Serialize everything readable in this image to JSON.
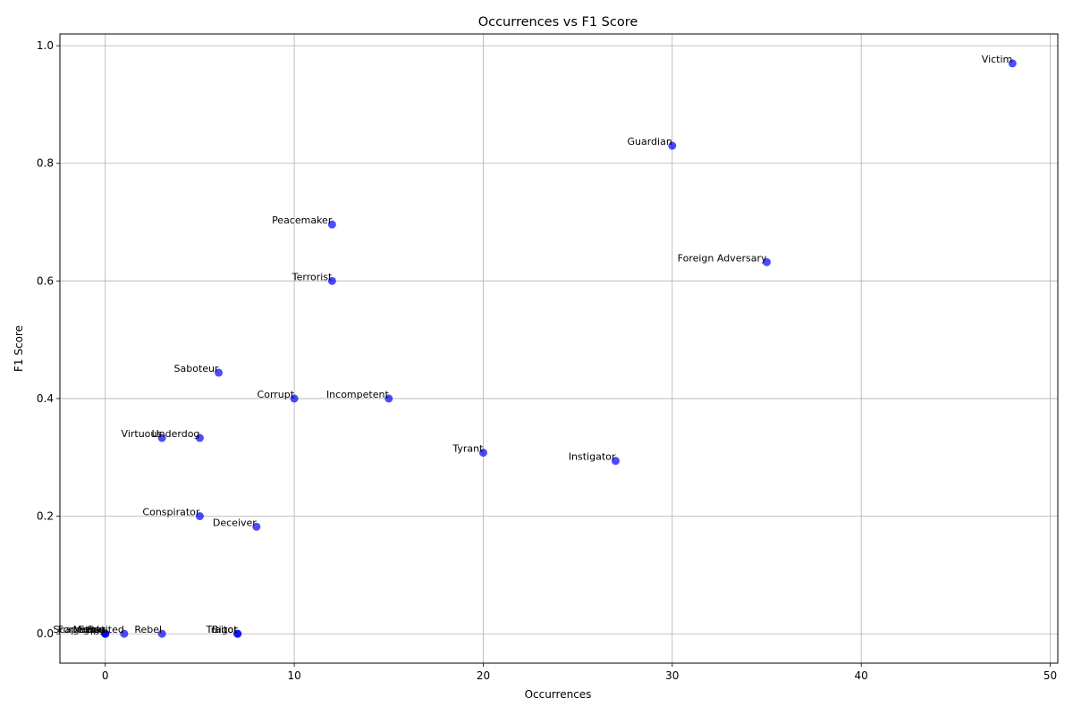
{
  "chart_data": {
    "type": "scatter",
    "title": "Occurrences vs F1 Score",
    "xlabel": "Occurrences",
    "ylabel": "F1 Score",
    "xlim": [
      -2.4,
      50.4
    ],
    "ylim": [
      -0.05,
      1.02
    ],
    "xticks": [
      0,
      10,
      20,
      30,
      40,
      50
    ],
    "yticks": [
      0.0,
      0.2,
      0.4,
      0.6,
      0.8,
      1.0
    ],
    "grid": true,
    "marker_color": "#0000ff",
    "marker_alpha": 0.7,
    "points": [
      {
        "label": "Victim",
        "x": 48,
        "y": 0.97
      },
      {
        "label": "Guardian",
        "x": 30,
        "y": 0.83
      },
      {
        "label": "Peacemaker",
        "x": 12,
        "y": 0.696
      },
      {
        "label": "Foreign Adversary",
        "x": 35,
        "y": 0.632
      },
      {
        "label": "Terrorist",
        "x": 12,
        "y": 0.6
      },
      {
        "label": "Saboteur",
        "x": 6,
        "y": 0.444
      },
      {
        "label": "Corrupt",
        "x": 10,
        "y": 0.4
      },
      {
        "label": "Incompetent",
        "x": 15,
        "y": 0.4
      },
      {
        "label": "Virtuous",
        "x": 3,
        "y": 0.333
      },
      {
        "label": "Underdog",
        "x": 5,
        "y": 0.333
      },
      {
        "label": "Tyrant",
        "x": 20,
        "y": 0.308
      },
      {
        "label": "Instigator",
        "x": 27,
        "y": 0.294
      },
      {
        "label": "Conspirator",
        "x": 5,
        "y": 0.2
      },
      {
        "label": "Deceiver",
        "x": 8,
        "y": 0.182
      },
      {
        "label": "Scapegoat",
        "x": 0,
        "y": 0.0
      },
      {
        "label": "Spy",
        "x": 0,
        "y": 0.0
      },
      {
        "label": "Forgotten",
        "x": 0,
        "y": 0.0
      },
      {
        "label": "Martyr",
        "x": 0,
        "y": 0.0
      },
      {
        "label": "Exploited",
        "x": 1,
        "y": 0.0
      },
      {
        "label": "Rebel",
        "x": 3,
        "y": 0.0
      },
      {
        "label": "Traitor",
        "x": 7,
        "y": 0.0
      },
      {
        "label": "Bigot",
        "x": 7,
        "y": 0.0
      }
    ]
  }
}
